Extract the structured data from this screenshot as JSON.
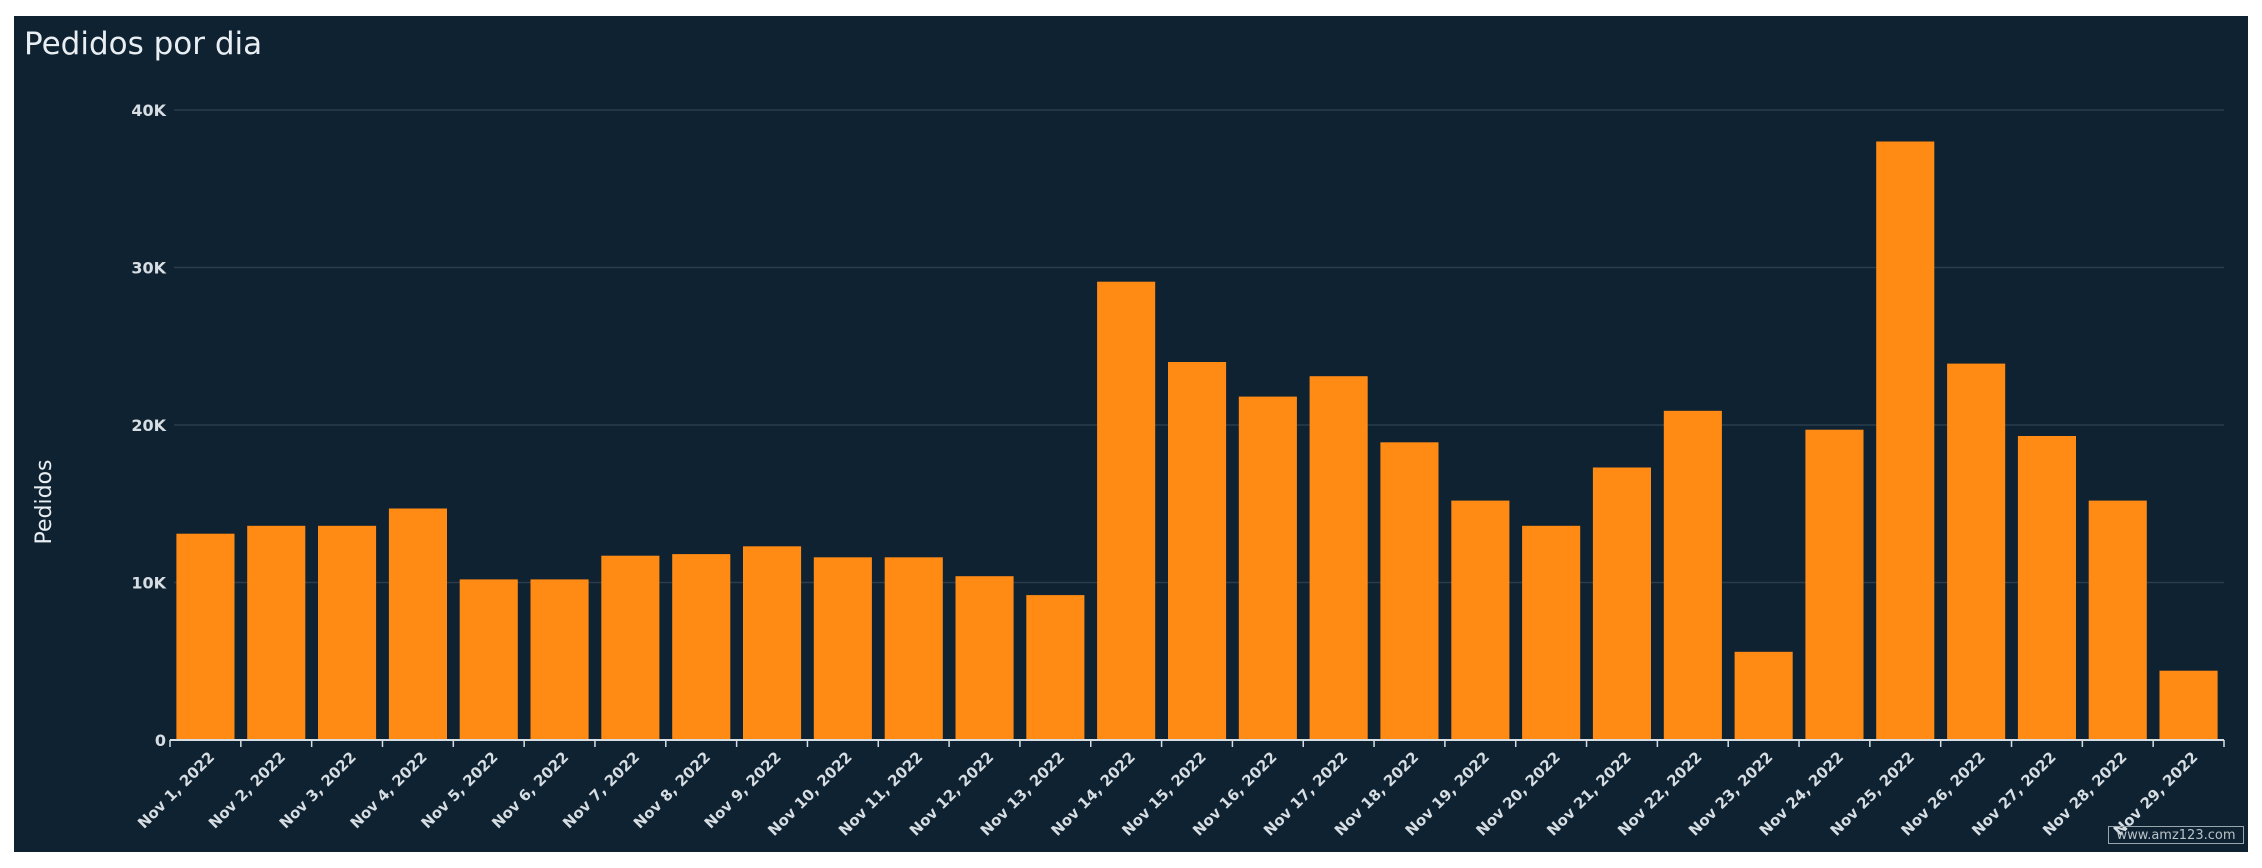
{
  "panel": {
    "title": "Pedidos por dia",
    "watermark": "www.amz123.com"
  },
  "colors": {
    "background": "#0f2231",
    "bar": "#ff8a14",
    "grid": "#2a3d4c",
    "text": "#e9eef2",
    "axis": "#d7dee3"
  },
  "chart_data": {
    "type": "bar",
    "title": "Pedidos por dia",
    "xlabel": "",
    "ylabel": "Pedidos",
    "ylim": [
      0,
      40000
    ],
    "yticks": [
      0,
      10000,
      20000,
      30000,
      40000
    ],
    "ytick_labels": [
      "0",
      "10K",
      "20K",
      "30K",
      "40K"
    ],
    "grid": true,
    "legend": "none",
    "categories": [
      "Nov 1, 2022",
      "Nov 2, 2022",
      "Nov 3, 2022",
      "Nov 4, 2022",
      "Nov 5, 2022",
      "Nov 6, 2022",
      "Nov 7, 2022",
      "Nov 8, 2022",
      "Nov 9, 2022",
      "Nov 10, 2022",
      "Nov 11, 2022",
      "Nov 12, 2022",
      "Nov 13, 2022",
      "Nov 14, 2022",
      "Nov 15, 2022",
      "Nov 16, 2022",
      "Nov 17, 2022",
      "Nov 18, 2022",
      "Nov 19, 2022",
      "Nov 20, 2022",
      "Nov 21, 2022",
      "Nov 22, 2022",
      "Nov 23, 2022",
      "Nov 24, 2022",
      "Nov 25, 2022",
      "Nov 26, 2022",
      "Nov 27, 2022",
      "Nov 28, 2022",
      "Nov 29, 2022"
    ],
    "values": [
      13100,
      13600,
      13600,
      14700,
      10200,
      10200,
      11700,
      11800,
      12300,
      11600,
      11600,
      10400,
      9200,
      29100,
      24000,
      21800,
      23100,
      18900,
      15200,
      13600,
      17300,
      20900,
      5600,
      19700,
      38000,
      23900,
      19300,
      15200,
      4400
    ]
  }
}
